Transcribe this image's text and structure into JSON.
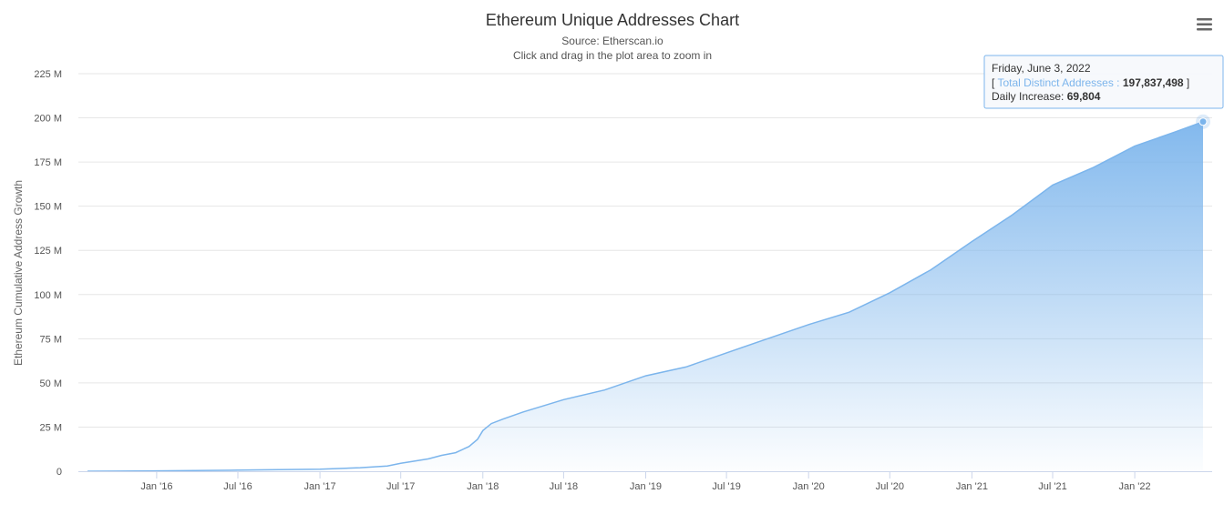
{
  "chart_data": {
    "type": "area",
    "title": "Ethereum Unique Addresses Chart",
    "subtitle": [
      "Source: Etherscan.io",
      "Click and drag in the plot area to zoom in"
    ],
    "xlabel": "",
    "ylabel": "Ethereum Cumulative Address Growth",
    "ylim": [
      0,
      225000000
    ],
    "xlim": [
      "2015-07-30",
      "2022-06-03"
    ],
    "y_ticks": [
      {
        "value": 0,
        "label": "0"
      },
      {
        "value": 25000000,
        "label": "25 M"
      },
      {
        "value": 50000000,
        "label": "50 M"
      },
      {
        "value": 75000000,
        "label": "75 M"
      },
      {
        "value": 100000000,
        "label": "100 M"
      },
      {
        "value": 125000000,
        "label": "125 M"
      },
      {
        "value": 150000000,
        "label": "150 M"
      },
      {
        "value": 175000000,
        "label": "175 M"
      },
      {
        "value": 200000000,
        "label": "200 M"
      },
      {
        "value": 225000000,
        "label": "225 M"
      }
    ],
    "x_ticks": [
      {
        "value": "2016-01-01",
        "label": "Jan '16"
      },
      {
        "value": "2016-07-01",
        "label": "Jul '16"
      },
      {
        "value": "2017-01-01",
        "label": "Jan '17"
      },
      {
        "value": "2017-07-01",
        "label": "Jul '17"
      },
      {
        "value": "2018-01-01",
        "label": "Jan '18"
      },
      {
        "value": "2018-07-01",
        "label": "Jul '18"
      },
      {
        "value": "2019-01-01",
        "label": "Jan '19"
      },
      {
        "value": "2019-07-01",
        "label": "Jul '19"
      },
      {
        "value": "2020-01-01",
        "label": "Jan '20"
      },
      {
        "value": "2020-07-01",
        "label": "Jul '20"
      },
      {
        "value": "2021-01-01",
        "label": "Jan '21"
      },
      {
        "value": "2021-07-01",
        "label": "Jul '21"
      },
      {
        "value": "2022-01-01",
        "label": "Jan '22"
      }
    ],
    "grid": true,
    "legend": "none",
    "series": [
      {
        "name": "Total Distinct Addresses",
        "color": "#7cb5ec",
        "points": [
          {
            "x": "2015-07-30",
            "y": 0
          },
          {
            "x": "2016-01-01",
            "y": 200000
          },
          {
            "x": "2016-07-01",
            "y": 600000
          },
          {
            "x": "2017-01-01",
            "y": 1200000
          },
          {
            "x": "2017-04-01",
            "y": 2000000
          },
          {
            "x": "2017-06-01",
            "y": 3000000
          },
          {
            "x": "2017-07-01",
            "y": 4500000
          },
          {
            "x": "2017-09-01",
            "y": 7000000
          },
          {
            "x": "2017-10-01",
            "y": 9000000
          },
          {
            "x": "2017-11-01",
            "y": 10500000
          },
          {
            "x": "2017-12-01",
            "y": 14000000
          },
          {
            "x": "2017-12-20",
            "y": 18000000
          },
          {
            "x": "2018-01-01",
            "y": 23000000
          },
          {
            "x": "2018-01-20",
            "y": 27000000
          },
          {
            "x": "2018-02-15",
            "y": 29500000
          },
          {
            "x": "2018-04-01",
            "y": 33500000
          },
          {
            "x": "2018-07-01",
            "y": 40500000
          },
          {
            "x": "2018-10-01",
            "y": 46000000
          },
          {
            "x": "2019-01-01",
            "y": 54000000
          },
          {
            "x": "2019-04-01",
            "y": 59000000
          },
          {
            "x": "2019-07-01",
            "y": 67000000
          },
          {
            "x": "2019-10-01",
            "y": 75000000
          },
          {
            "x": "2020-01-01",
            "y": 83000000
          },
          {
            "x": "2020-04-01",
            "y": 90000000
          },
          {
            "x": "2020-07-01",
            "y": 101000000
          },
          {
            "x": "2020-10-01",
            "y": 114000000
          },
          {
            "x": "2021-01-01",
            "y": 130000000
          },
          {
            "x": "2021-04-01",
            "y": 145000000
          },
          {
            "x": "2021-07-01",
            "y": 162000000
          },
          {
            "x": "2021-10-01",
            "y": 172000000
          },
          {
            "x": "2022-01-01",
            "y": 184000000
          },
          {
            "x": "2022-04-01",
            "y": 192000000
          },
          {
            "x": "2022-06-03",
            "y": 197837498
          }
        ]
      }
    ],
    "tooltip": {
      "date": "Friday, June 3, 2022",
      "series_label": "Total Distinct Addresses",
      "separator": " : ",
      "bracket_open": "[ ",
      "bracket_close": " ]",
      "value": "197,837,498",
      "increase_label": "Daily Increase:",
      "increase_value": "69,804"
    }
  },
  "ui": {
    "menu_icon": "hamburger-menu-icon"
  }
}
